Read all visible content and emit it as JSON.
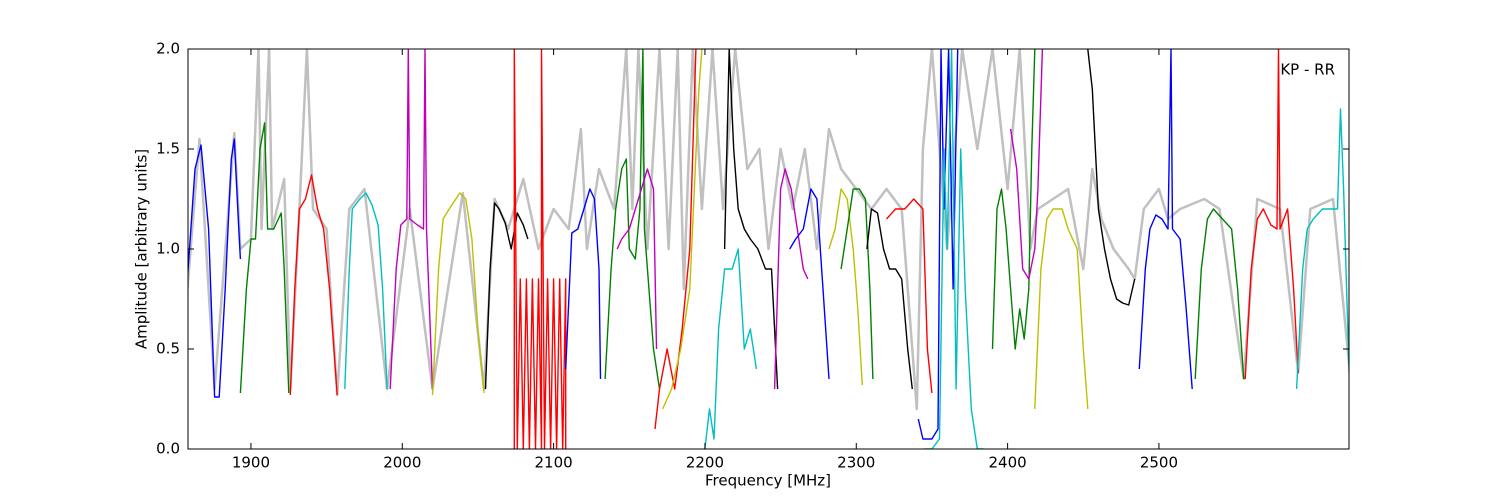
{
  "chart_data": {
    "type": "line",
    "x_label": "Frequency [MHz]",
    "y_label": "Amplitude [arbitrary units]",
    "annotation": "KP - RR",
    "xlim": [
      1858.4,
      2625.6
    ],
    "ylim": [
      0,
      2
    ],
    "xticks": [
      1900,
      2000,
      2100,
      2200,
      2300,
      2400,
      2500
    ],
    "yticks": [
      {
        "value": 0,
        "label": "0.0"
      },
      0.5,
      {
        "value": 1,
        "label": "1.0"
      },
      1.5,
      {
        "value": 2,
        "label": "2.0"
      }
    ],
    "series": [
      {
        "color": "#c0c0c0",
        "x": [
          1858,
          1866,
          1876,
          1889,
          1893,
          1900,
          1905,
          1907,
          1912,
          1914,
          1922,
          1926,
          1932,
          1937,
          1941,
          1950,
          1957,
          1965,
          1975,
          1990,
          2005,
          2020,
          2040,
          2054,
          2061,
          2070,
          2080,
          2090,
          2100,
          2110,
          2118,
          2122,
          2130,
          2140,
          2148,
          2152,
          2156,
          2162,
          2170,
          2176,
          2182,
          2186,
          2192,
          2198,
          2205,
          2212,
          2220,
          2228,
          2236,
          2242,
          2250,
          2258,
          2266,
          2274,
          2282,
          2290,
          2300,
          2310,
          2320,
          2330,
          2340,
          2344,
          2350,
          2360,
          2370,
          2380,
          2390,
          2400,
          2408,
          2415,
          2420,
          2430,
          2440,
          2450,
          2456,
          2462,
          2470,
          2480,
          2484,
          2490,
          2500,
          2506,
          2514,
          2530,
          2540,
          2556,
          2565,
          2580,
          2592,
          2600,
          2615,
          2626
        ],
        "values": [
          0.8,
          1.55,
          0.3,
          1.58,
          1.0,
          1.05,
          2.0,
          1.1,
          2.0,
          1.1,
          1.35,
          0.3,
          1.2,
          2.0,
          1.2,
          1.1,
          0.27,
          1.2,
          1.3,
          0.3,
          1.2,
          0.3,
          1.28,
          0.3,
          1.25,
          1.1,
          1.35,
          1.0,
          1.2,
          1.1,
          1.6,
          1.0,
          1.4,
          1.2,
          2.0,
          1.2,
          2.0,
          1.0,
          2.0,
          1.0,
          2.0,
          0.8,
          2.0,
          1.2,
          2.0,
          1.2,
          2.0,
          1.4,
          1.5,
          1.0,
          1.5,
          1.2,
          1.5,
          1.0,
          1.6,
          1.4,
          1.3,
          1.2,
          1.3,
          1.2,
          0.2,
          1.5,
          2.0,
          1.0,
          2.0,
          1.5,
          2.0,
          1.3,
          2.0,
          1.0,
          1.2,
          1.25,
          1.3,
          0.9,
          1.4,
          1.15,
          1.0,
          0.9,
          0.85,
          1.2,
          1.3,
          1.15,
          1.2,
          1.25,
          1.2,
          0.35,
          1.25,
          1.2,
          0.38,
          1.2,
          1.25,
          0.4
        ]
      },
      {
        "color": "#0000ff",
        "x": [
          1858,
          1863,
          1867,
          1872,
          1876,
          1879,
          1883,
          1887,
          1889,
          1892,
          1893
        ],
        "values": [
          0.85,
          1.4,
          1.52,
          1.1,
          0.26,
          0.26,
          0.8,
          1.45,
          1.55,
          1.1,
          0.95
        ]
      },
      {
        "color": "#008000",
        "x": [
          1893,
          1897,
          1900,
          1903,
          1906,
          1909,
          1911,
          1915,
          1920,
          1922,
          1925
        ],
        "values": [
          0.28,
          0.8,
          1.05,
          1.05,
          1.5,
          1.63,
          1.1,
          1.1,
          1.18,
          0.9,
          0.28
        ]
      },
      {
        "color": "#ff0000",
        "x": [
          1926,
          1929,
          1932,
          1936,
          1940,
          1944,
          1948,
          1952,
          1957
        ],
        "values": [
          0.27,
          0.8,
          1.2,
          1.25,
          1.37,
          1.2,
          1.1,
          0.8,
          0.27
        ]
      },
      {
        "color": "#00bfbf",
        "x": [
          1962,
          1965,
          1967,
          1972,
          1976,
          1980,
          1984,
          1987,
          1990
        ],
        "values": [
          0.3,
          0.9,
          1.2,
          1.25,
          1.28,
          1.22,
          1.12,
          0.8,
          0.3
        ]
      },
      {
        "color": "#bf00bf",
        "x": [
          1992,
          1996,
          1999,
          2003,
          2004,
          2005,
          2010,
          2014,
          2015,
          2016,
          2019,
          2020
        ],
        "values": [
          0.3,
          0.9,
          1.12,
          1.15,
          2.0,
          1.15,
          1.12,
          1.1,
          2.0,
          1.1,
          0.5,
          0.3
        ]
      },
      {
        "color": "#bfbf00",
        "x": [
          2020,
          2024,
          2027,
          2031,
          2038,
          2042,
          2046,
          2050,
          2054
        ],
        "values": [
          0.27,
          0.9,
          1.15,
          1.2,
          1.28,
          1.25,
          1.05,
          0.6,
          0.28
        ]
      },
      {
        "color": "#000000",
        "x": [
          2055,
          2058,
          2061,
          2064,
          2068,
          2072,
          2076,
          2080,
          2083
        ],
        "values": [
          0.3,
          0.9,
          1.23,
          1.2,
          1.13,
          1.0,
          1.18,
          1.12,
          1.05
        ]
      },
      {
        "color": "#ff0000",
        "x": [
          2074,
          2074,
          2076,
          2078,
          2080,
          2082,
          2084,
          2086,
          2088,
          2090,
          2092,
          2092,
          2094,
          2096,
          2098,
          2100,
          2102,
          2104,
          2106,
          2108,
          2108
        ],
        "values": [
          0,
          2.0,
          0,
          0.85,
          0,
          0.85,
          0,
          0.85,
          0,
          0.85,
          0,
          2.0,
          0,
          0.85,
          0,
          0.85,
          0,
          0.85,
          0,
          0.85,
          0
        ]
      },
      {
        "color": "#0000ff",
        "x": [
          2108,
          2112,
          2116,
          2120,
          2124,
          2127,
          2130,
          2131
        ],
        "values": [
          0.4,
          1.08,
          1.1,
          1.2,
          1.3,
          1.25,
          0.9,
          0.35
        ]
      },
      {
        "color": "#008000",
        "x": [
          2134,
          2138,
          2141,
          2145,
          2148,
          2150,
          2154,
          2157,
          2159,
          2160,
          2166,
          2170
        ],
        "values": [
          0.35,
          0.9,
          1.2,
          1.4,
          1.45,
          1.0,
          0.95,
          1.2,
          2.0,
          1.1,
          0.5,
          0.3
        ]
      },
      {
        "color": "#bf00bf",
        "x": [
          2142,
          2145,
          2150,
          2156,
          2162,
          2166,
          2168
        ],
        "values": [
          1.0,
          1.05,
          1.1,
          1.25,
          1.4,
          1.3,
          0.5
        ]
      },
      {
        "color": "#ff0000",
        "x": [
          2167,
          2170,
          2175,
          2180,
          2185,
          2190,
          2194
        ],
        "values": [
          0.1,
          0.3,
          0.5,
          0.3,
          0.6,
          1.0,
          2.0
        ]
      },
      {
        "color": "#bfbf00",
        "x": [
          2172,
          2178,
          2184,
          2190,
          2196,
          2198
        ],
        "values": [
          0.2,
          0.3,
          0.5,
          0.8,
          1.8,
          2.0
        ]
      },
      {
        "color": "#00bfbf",
        "x": [
          2200,
          2203,
          2206,
          2209,
          2213,
          2218,
          2222,
          2226,
          2230,
          2234
        ],
        "values": [
          0,
          0.2,
          0.05,
          0.6,
          0.9,
          0.9,
          1.0,
          0.5,
          0.6,
          0.4
        ]
      },
      {
        "color": "#000000",
        "x": [
          2213,
          2216,
          2219,
          2222,
          2226,
          2230,
          2235,
          2240,
          2244,
          2246,
          2248
        ],
        "values": [
          1.0,
          2.0,
          1.5,
          1.2,
          1.1,
          1.05,
          1.0,
          0.9,
          0.9,
          0.6,
          0.3
        ]
      },
      {
        "color": "#bf00bf",
        "x": [
          2246,
          2250,
          2253,
          2257,
          2261,
          2265,
          2268
        ],
        "values": [
          0.3,
          1.3,
          1.4,
          1.3,
          1.1,
          0.9,
          0.85
        ]
      },
      {
        "color": "#0000ff",
        "x": [
          2256,
          2260,
          2265,
          2270,
          2274,
          2278,
          2282
        ],
        "values": [
          1.0,
          1.05,
          1.1,
          1.3,
          1.25,
          0.8,
          0.35
        ]
      },
      {
        "color": "#bfbf00",
        "x": [
          2282,
          2286,
          2290,
          2294,
          2298,
          2301,
          2304
        ],
        "values": [
          1.0,
          1.1,
          1.3,
          1.25,
          1.0,
          0.7,
          0.32
        ]
      },
      {
        "color": "#008000",
        "x": [
          2290,
          2294,
          2298,
          2302,
          2306,
          2309,
          2311
        ],
        "values": [
          0.9,
          1.1,
          1.3,
          1.3,
          1.25,
          0.8,
          0.35
        ]
      },
      {
        "color": "#000000",
        "x": [
          2307,
          2310,
          2314,
          2318,
          2322,
          2326,
          2330,
          2334,
          2337
        ],
        "values": [
          1.0,
          1.2,
          1.18,
          1.0,
          0.9,
          0.9,
          0.85,
          0.5,
          0.3
        ]
      },
      {
        "color": "#ff0000",
        "x": [
          2320,
          2326,
          2332,
          2338,
          2344,
          2347,
          2350
        ],
        "values": [
          1.15,
          1.2,
          1.2,
          1.25,
          1.2,
          0.5,
          0.28
        ]
      },
      {
        "color": "#0000ff",
        "x": [
          2341,
          2344,
          2350,
          2354,
          2356,
          2358,
          2361,
          2364,
          2367
        ],
        "values": [
          0.15,
          0.05,
          0.05,
          0.1,
          2.0,
          1.2,
          2.0,
          0.8,
          2.0
        ]
      },
      {
        "color": "#00bfbf",
        "x": [
          2345,
          2350,
          2355,
          2358,
          2360,
          2363,
          2366,
          2369,
          2372,
          2376,
          2380,
          2384
        ],
        "values": [
          0,
          0,
          0.05,
          1.5,
          1.0,
          2.0,
          0.3,
          1.5,
          0.8,
          0.2,
          0,
          0
        ]
      },
      {
        "color": "#008000",
        "x": [
          2390,
          2393,
          2396,
          2399,
          2402,
          2405,
          2408,
          2411,
          2414,
          2416,
          2418
        ],
        "values": [
          0.5,
          1.2,
          1.3,
          1.1,
          0.8,
          0.5,
          0.7,
          0.55,
          0.8,
          1.5,
          2.0
        ]
      },
      {
        "color": "#bf00bf",
        "x": [
          2402,
          2406,
          2410,
          2414,
          2418,
          2420,
          2423
        ],
        "values": [
          1.6,
          1.4,
          0.9,
          0.85,
          1.0,
          1.3,
          2.0
        ]
      },
      {
        "color": "#bfbf00",
        "x": [
          2418,
          2422,
          2426,
          2430,
          2436,
          2440,
          2446,
          2450,
          2453
        ],
        "values": [
          0.2,
          0.9,
          1.15,
          1.2,
          1.2,
          1.1,
          1.0,
          0.5,
          0.2
        ]
      },
      {
        "color": "#000000",
        "x": [
          2453,
          2456,
          2460,
          2464,
          2468,
          2472,
          2476,
          2480,
          2484
        ],
        "values": [
          2.0,
          1.8,
          1.2,
          1.0,
          0.85,
          0.75,
          0.73,
          0.72,
          0.85
        ]
      },
      {
        "color": "#0000ff",
        "x": [
          2487,
          2491,
          2494,
          2498,
          2502,
          2506,
          2508,
          2509,
          2514,
          2518,
          2522
        ],
        "values": [
          0.4,
          0.9,
          1.1,
          1.17,
          1.15,
          1.1,
          2.0,
          1.1,
          1.05,
          0.7,
          0.3
        ]
      },
      {
        "color": "#008000",
        "x": [
          2524,
          2528,
          2532,
          2536,
          2542,
          2548,
          2552,
          2556
        ],
        "values": [
          0.35,
          0.9,
          1.15,
          1.2,
          1.15,
          1.1,
          0.8,
          0.35
        ]
      },
      {
        "color": "#ff0000",
        "x": [
          2557,
          2561,
          2565,
          2569,
          2574,
          2578,
          2579,
          2580,
          2585,
          2589,
          2592
        ],
        "values": [
          0.35,
          0.9,
          1.15,
          1.2,
          1.12,
          1.1,
          2.0,
          1.1,
          1.2,
          0.8,
          0.38
        ]
      },
      {
        "color": "#00bfbf",
        "x": [
          2591,
          2595,
          2598,
          2602,
          2608,
          2614,
          2618,
          2620,
          2622,
          2624,
          2626
        ],
        "values": [
          0.3,
          0.9,
          1.1,
          1.15,
          1.2,
          1.2,
          1.2,
          1.7,
          1.3,
          0.8,
          0.3
        ]
      }
    ]
  }
}
